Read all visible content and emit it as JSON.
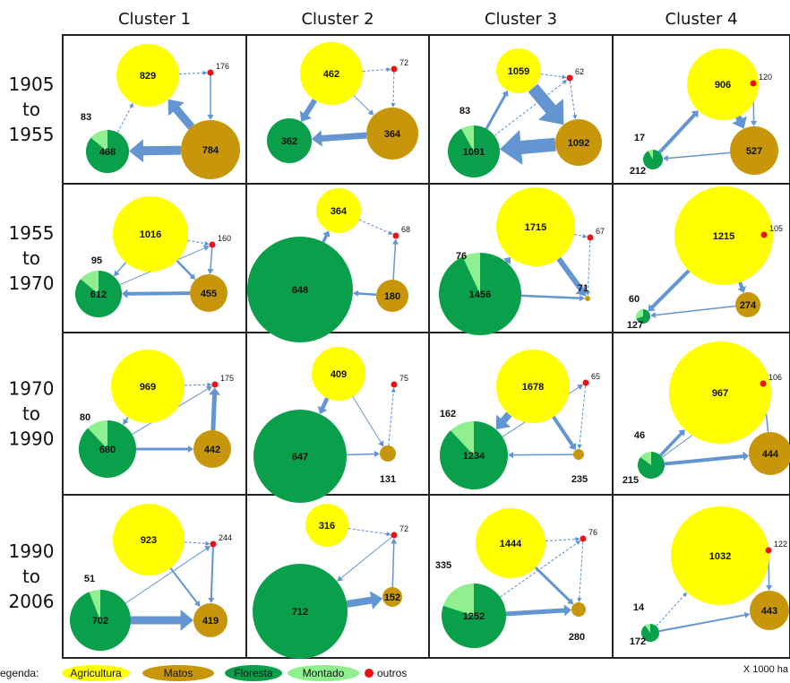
{
  "columns": [
    "Cluster 1",
    "Cluster 2",
    "Cluster 3",
    "Cluster 4"
  ],
  "rows": [
    {
      "l1": "1905",
      "l2": "to",
      "l3": "1955"
    },
    {
      "l1": "1955",
      "l2": "to",
      "l3": "1970"
    },
    {
      "l1": "1970",
      "l2": "to",
      "l3": "1990"
    },
    {
      "l1": "1990",
      "l2": "to",
      "l3": "2006"
    }
  ],
  "colors": {
    "agricultura": "#ffff00",
    "matos": "#c8960a",
    "floresta": "#0aa04b",
    "montado": "#90f090",
    "outros": "#ee1111",
    "arrow": "#5b8fd0"
  },
  "panels": [
    [
      {
        "agri": "829",
        "matos": "784",
        "floresta": "468",
        "montado": "83",
        "outros": "176"
      },
      {
        "agri": "462",
        "matos": "364",
        "floresta": "362",
        "montado": "",
        "outros": "72"
      },
      {
        "agri": "1059",
        "matos": "1092",
        "floresta": "1091",
        "montado": "83",
        "outros": "62"
      },
      {
        "agri": "906",
        "matos": "527",
        "floresta": "212",
        "montado": "17",
        "outros": "120"
      }
    ],
    [
      {
        "agri": "1016",
        "matos": "455",
        "floresta": "612",
        "montado": "95",
        "outros": "160"
      },
      {
        "agri": "364",
        "matos": "180",
        "floresta": "648",
        "montado": "",
        "outros": "68"
      },
      {
        "agri": "1715",
        "matos": "71",
        "floresta": "1456",
        "montado": "76",
        "outros": "67"
      },
      {
        "agri": "1215",
        "matos": "274",
        "floresta": "127",
        "montado": "60",
        "outros": "105"
      }
    ],
    [
      {
        "agri": "969",
        "matos": "442",
        "floresta": "680",
        "montado": "80",
        "outros": "175"
      },
      {
        "agri": "409",
        "matos": "131",
        "floresta": "647",
        "montado": "",
        "outros": "75"
      },
      {
        "agri": "1678",
        "matos": "235",
        "floresta": "1234",
        "montado": "162",
        "outros": "65"
      },
      {
        "agri": "967",
        "matos": "444",
        "floresta": "215",
        "montado": "46",
        "outros": "106"
      }
    ],
    [
      {
        "agri": "923",
        "matos": "419",
        "floresta": "702",
        "montado": "51",
        "outros": "244"
      },
      {
        "agri": "316",
        "matos": "152",
        "floresta": "712",
        "montado": "",
        "outros": "72"
      },
      {
        "agri": "1444",
        "matos": "280",
        "floresta": "1252",
        "montado": "335",
        "outros": "76"
      },
      {
        "agri": "1032",
        "matos": "443",
        "floresta": "172",
        "montado": "14",
        "outros": "122"
      }
    ]
  ],
  "legend": {
    "prefix": "egenda:",
    "agricultura": "Agricultura",
    "matos": "Matos",
    "floresta": "Floresta",
    "montado": "Montado",
    "outros": "outros"
  },
  "unit": "X 1000 ha"
}
